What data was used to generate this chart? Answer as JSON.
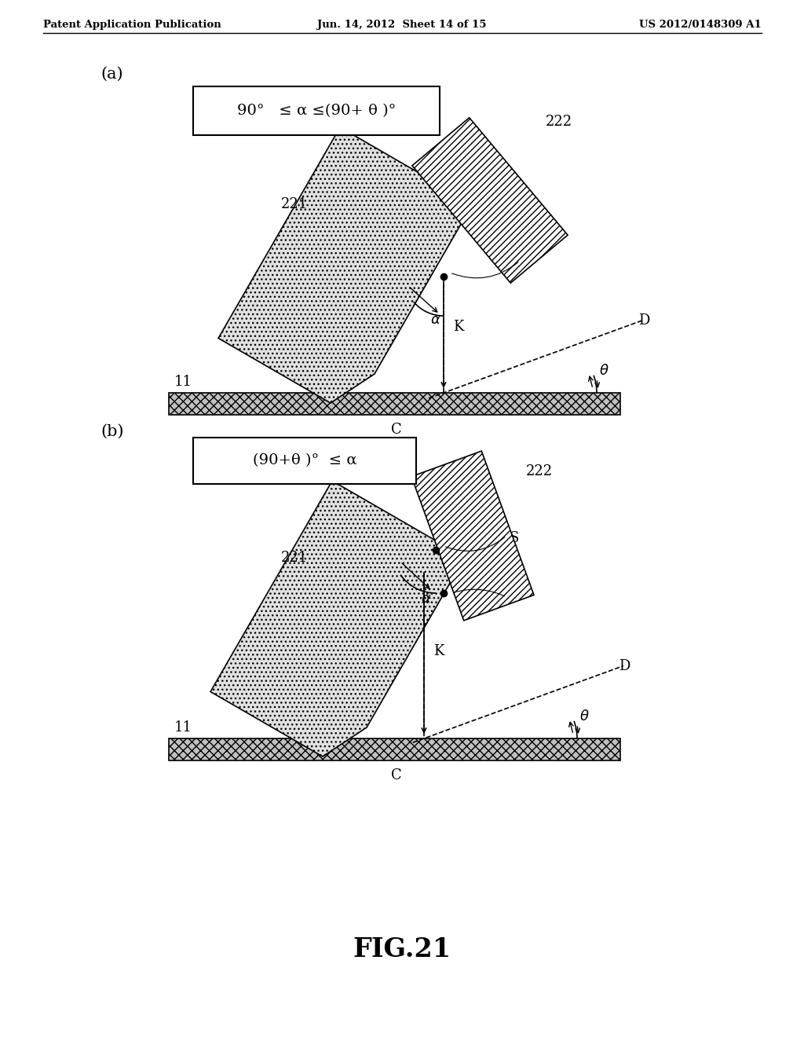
{
  "header_left": "Patent Application Publication",
  "header_mid": "Jun. 14, 2012  Sheet 14 of 15",
  "header_right": "US 2012/0148309 A1",
  "fig_label": "FIG.21",
  "label_a": "(a)",
  "label_b": "(b)",
  "formula_a": "90°   ≤ α ≤(90+ θ )°",
  "formula_b": "(90+θ )°  ≤ α",
  "bg_color": "#ffffff"
}
